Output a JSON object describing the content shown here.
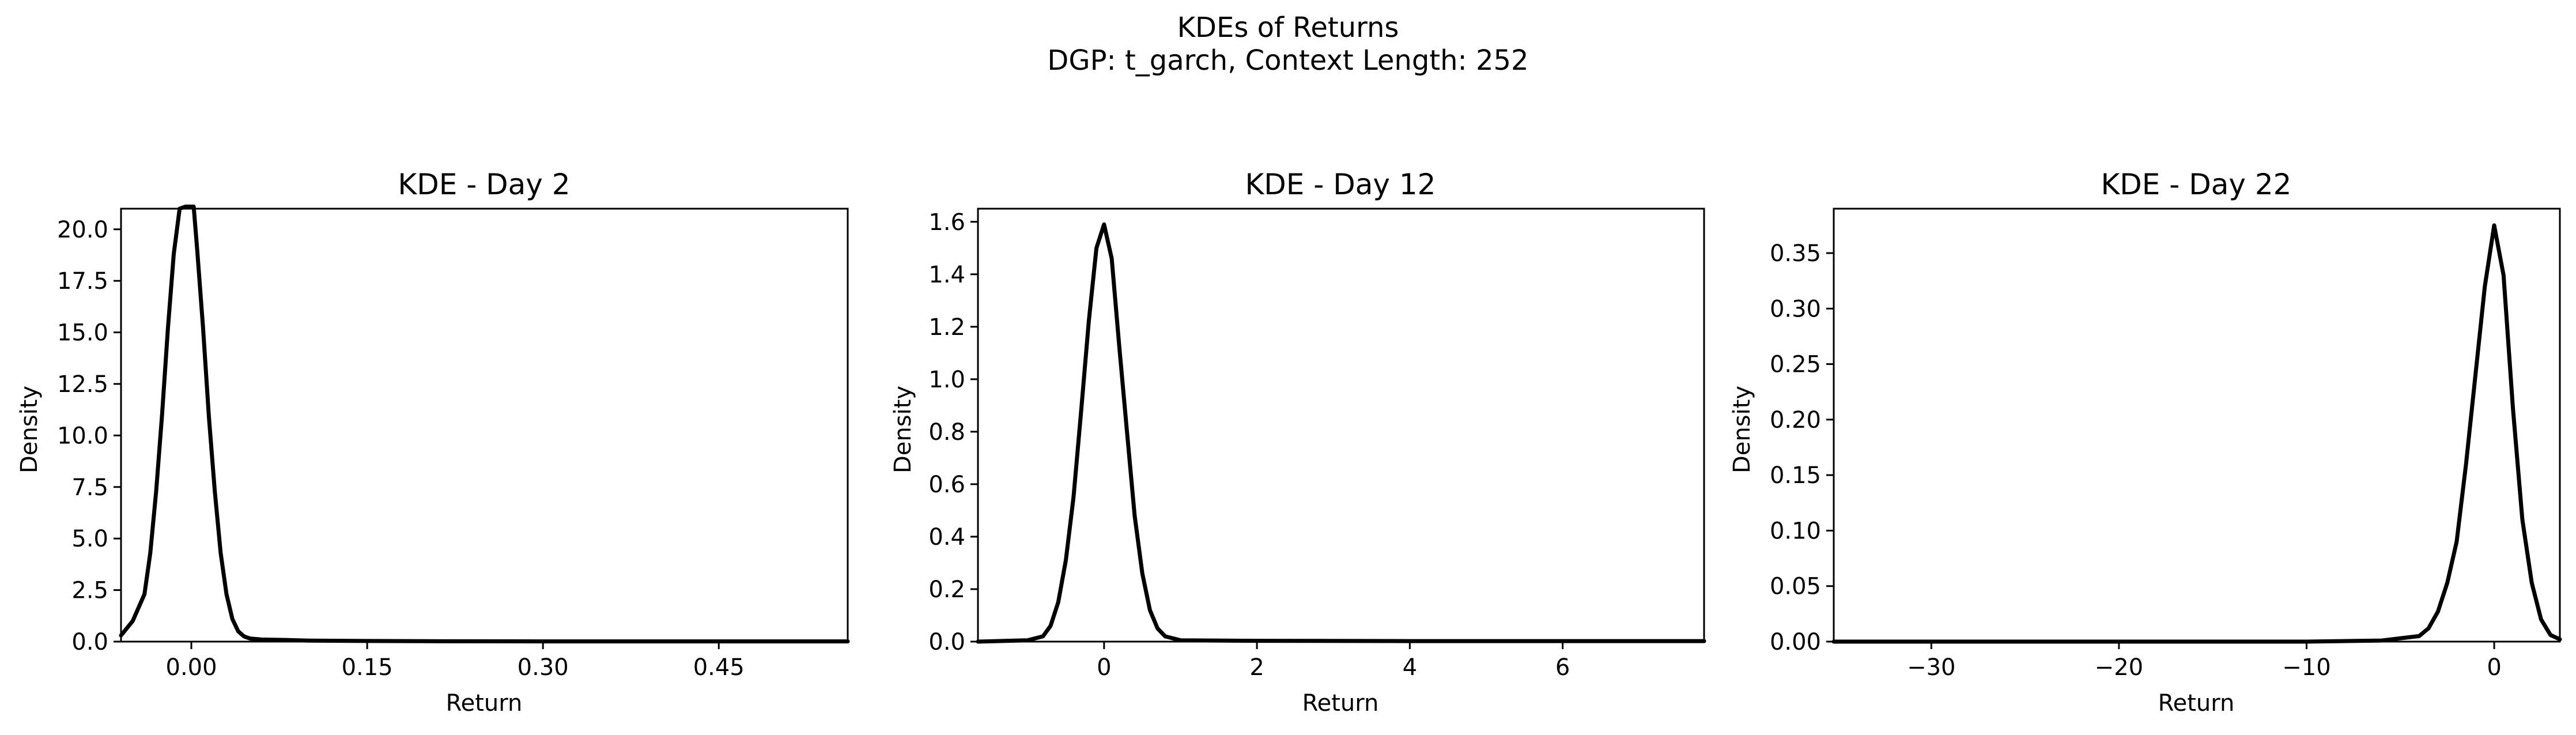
{
  "figure": {
    "title_line1": "KDEs of Returns",
    "title_line2": "DGP: t_garch, Context Length: 252",
    "background": "#ffffff",
    "line_color": "#000000"
  },
  "chart_data": [
    {
      "type": "line",
      "title": "KDE - Day 2",
      "xlabel": "Return",
      "ylabel": "Density",
      "xlim": [
        -0.06,
        0.56
      ],
      "ylim": [
        0,
        21.0
      ],
      "grid": false,
      "legend": "none",
      "xticks": [
        0.0,
        0.15,
        0.3,
        0.45
      ],
      "xtick_labels": [
        "0.00",
        "0.15",
        "0.30",
        "0.45"
      ],
      "yticks": [
        0,
        2.5,
        5.0,
        7.5,
        10.0,
        12.5,
        15.0,
        17.5,
        20.0
      ],
      "ytick_labels": [
        "0.0",
        "2.5",
        "5.0",
        "7.5",
        "10.0",
        "12.5",
        "15.0",
        "17.5",
        "20.0"
      ],
      "series": [
        {
          "x": [
            -0.06,
            -0.05,
            -0.04,
            -0.035,
            -0.03,
            -0.025,
            -0.02,
            -0.015,
            -0.01,
            -0.005,
            -0.002,
            0.002,
            0.005,
            0.01,
            0.015,
            0.02,
            0.025,
            0.03,
            0.035,
            0.04,
            0.045,
            0.05,
            0.06,
            0.08,
            0.1,
            0.15,
            0.2,
            0.3,
            0.4,
            0.5,
            0.56
          ],
          "y": [
            0.3,
            1.0,
            2.3,
            4.3,
            7.3,
            11.0,
            15.2,
            18.8,
            21.0,
            21.1,
            21.1,
            21.1,
            19.0,
            15.2,
            10.9,
            7.3,
            4.3,
            2.3,
            1.1,
            0.5,
            0.25,
            0.15,
            0.1,
            0.08,
            0.05,
            0.03,
            0.02,
            0.01,
            0.01,
            0.01,
            0.01
          ]
        }
      ]
    },
    {
      "type": "line",
      "title": "KDE - Day 12",
      "xlabel": "Return",
      "ylabel": "Density",
      "xlim": [
        -1.65,
        7.85
      ],
      "ylim": [
        0,
        1.65
      ],
      "grid": false,
      "legend": "none",
      "xticks": [
        0,
        2,
        4,
        6
      ],
      "xtick_labels": [
        "0",
        "2",
        "4",
        "6"
      ],
      "yticks": [
        0,
        0.2,
        0.4,
        0.6,
        0.8,
        1.0,
        1.2,
        1.4,
        1.6
      ],
      "ytick_labels": [
        "0.0",
        "0.2",
        "0.4",
        "0.6",
        "0.8",
        "1.0",
        "1.2",
        "1.4",
        "1.6"
      ],
      "series": [
        {
          "x": [
            -1.65,
            -1.0,
            -0.8,
            -0.7,
            -0.6,
            -0.5,
            -0.4,
            -0.3,
            -0.2,
            -0.1,
            0.0,
            0.1,
            0.2,
            0.3,
            0.4,
            0.5,
            0.6,
            0.7,
            0.8,
            1.0,
            2.0,
            4.0,
            6.0,
            7.85
          ],
          "y": [
            0.0,
            0.005,
            0.02,
            0.06,
            0.15,
            0.31,
            0.55,
            0.88,
            1.22,
            1.5,
            1.59,
            1.46,
            1.12,
            0.8,
            0.48,
            0.26,
            0.12,
            0.05,
            0.02,
            0.005,
            0.003,
            0.002,
            0.002,
            0.002
          ]
        }
      ]
    },
    {
      "type": "line",
      "title": "KDE - Day 22",
      "xlabel": "Return",
      "ylabel": "Density",
      "xlim": [
        -35.2,
        3.5
      ],
      "ylim": [
        0,
        0.39
      ],
      "grid": false,
      "legend": "none",
      "xticks": [
        -30,
        -20,
        -10,
        0
      ],
      "xtick_labels": [
        "−30",
        "−20",
        "−10",
        "0"
      ],
      "yticks": [
        0,
        0.05,
        0.1,
        0.15,
        0.2,
        0.25,
        0.3,
        0.35
      ],
      "ytick_labels": [
        "0.00",
        "0.05",
        "0.10",
        "0.15",
        "0.20",
        "0.25",
        "0.30",
        "0.35"
      ],
      "series": [
        {
          "x": [
            -35.2,
            -20,
            -10,
            -6,
            -4,
            -3.5,
            -3.0,
            -2.5,
            -2.0,
            -1.5,
            -1.0,
            -0.5,
            0.0,
            0.5,
            1.0,
            1.5,
            2.0,
            2.5,
            3.0,
            3.5
          ],
          "y": [
            0.0,
            0.0,
            0.0,
            0.001,
            0.005,
            0.012,
            0.027,
            0.053,
            0.09,
            0.16,
            0.24,
            0.32,
            0.375,
            0.33,
            0.21,
            0.11,
            0.053,
            0.02,
            0.006,
            0.002
          ]
        }
      ]
    }
  ]
}
